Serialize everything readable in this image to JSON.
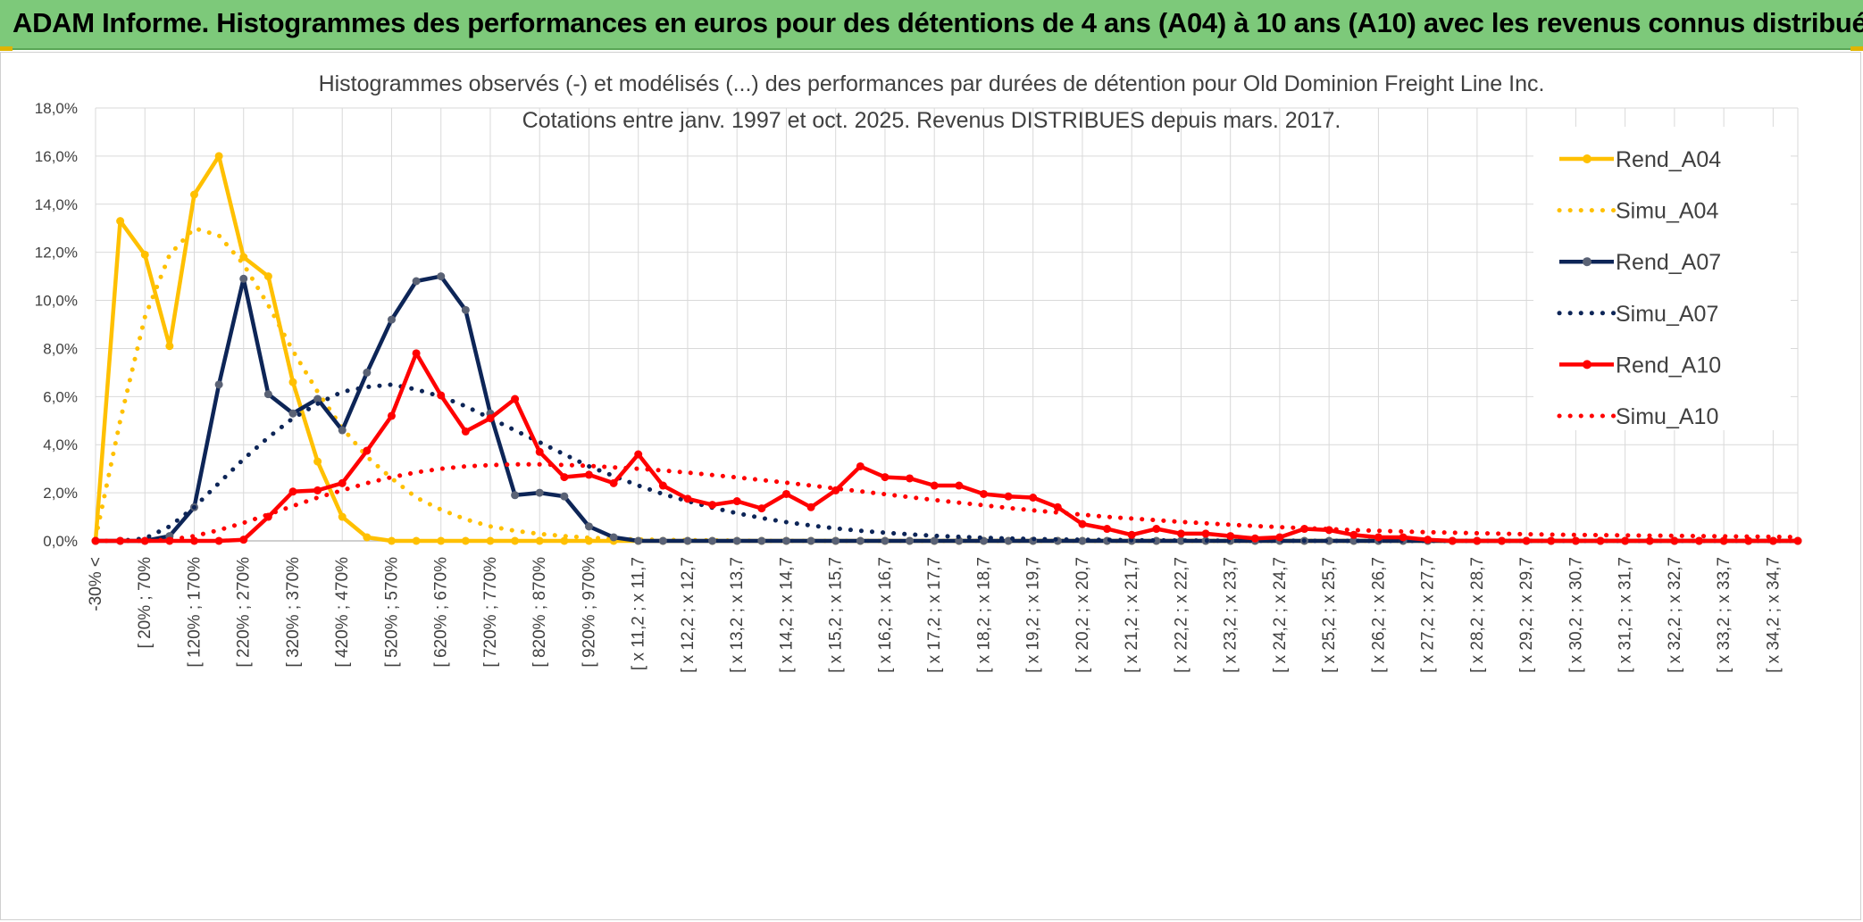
{
  "header": {
    "title": "ADAM Informe. Histogrammes des performances en euros pour des détentions de 4 ans (A04) à 10 ans (A10) avec les revenus connus distribués"
  },
  "colors": {
    "banner": "#7dc97a",
    "A04": "#ffc000",
    "A07": "#0d2557",
    "A07_marker": "#5a6275",
    "A10": "#ff0000",
    "grid": "#d9d9d9",
    "text": "#404040"
  },
  "chart_data": {
    "type": "line",
    "title": "Histogrammes observés (-) et modélisés (...) des performances par durées de détention pour Old Dominion Freight Line Inc.",
    "subtitle": "Cotations entre janv. 1997 et oct. 2025. Revenus DISTRIBUES depuis mars. 2017.",
    "xlabel": "",
    "ylabel": "",
    "ylim": [
      0,
      18
    ],
    "yticks": [
      "0,0%",
      "2,0%",
      "4,0%",
      "6,0%",
      "8,0%",
      "10,0%",
      "12,0%",
      "14,0%",
      "16,0%",
      "18,0%"
    ],
    "x_tick_labels": [
      "-30% <",
      "[ 20% ; 70%",
      "[ 120% ; 170%",
      "[ 220% ; 270%",
      "[ 320% ; 370%",
      "[ 420% ; 470%",
      "[ 520% ; 570%",
      "[ 620% ; 670%",
      "[ 720% ; 770%",
      "[ 820% ; 870%",
      "[ 920% ; 970%",
      "[ x 11,2 ; x 11,7",
      "[ x 12,2 ; x 12,7",
      "[ x 13,2 ; x 13,7",
      "[ x 14,2 ; x 14,7",
      "[ x 15,2 ; x 15,7",
      "[ x 16,2 ; x 16,7",
      "[ x 17,2 ; x 17,7",
      "[ x 18,2 ; x 18,7",
      "[ x 19,2 ; x 19,7",
      "[ x 20,2 ; x 20,7",
      "[ x 21,2 ; x 21,7",
      "[ x 22,2 ; x 22,7",
      "[ x 23,2 ; x 23,7",
      "[ x 24,2 ; x 24,7",
      "[ x 25,2 ; x 25,7",
      "[ x 26,2 ; x 26,7",
      "[ x 27,2 ; x 27,7",
      "[ x 28,2 ; x 28,7",
      "[ x 29,2 ; x 29,7",
      "[ x 30,2 ; x 30,7",
      "[ x 31,2 ; x 31,7",
      "[ x 32,2 ; x 32,7",
      "[ x 33,2 ; x 33,7",
      "[ x 34,2 ; x 34,7"
    ],
    "legend_position": "right",
    "grid": true,
    "series": [
      {
        "name": "Rend_A04",
        "style": "solid",
        "color": "#ffc000",
        "values": [
          0,
          13.3,
          11.9,
          8.1,
          14.4,
          16.0,
          11.8,
          11.0,
          6.6,
          3.3,
          1.0,
          0.15,
          0,
          0,
          0,
          0,
          0,
          0,
          0,
          0,
          0,
          0,
          0,
          0,
          0,
          0,
          0,
          0,
          0,
          0,
          0,
          0,
          0,
          0,
          0,
          0,
          0,
          0,
          0,
          0,
          0,
          0,
          0,
          0,
          0,
          0,
          0,
          0,
          0,
          0,
          0,
          0,
          0,
          0,
          0,
          0,
          0,
          0,
          0,
          0,
          0,
          0,
          0,
          0,
          0,
          0,
          0,
          0,
          0,
          0
        ]
      },
      {
        "name": "Simu_A04",
        "style": "dotted",
        "color": "#ffc000",
        "values": [
          0.1,
          5.0,
          9.3,
          11.9,
          13.0,
          12.7,
          11.5,
          9.8,
          7.9,
          6.2,
          4.7,
          3.5,
          2.6,
          1.8,
          1.3,
          0.9,
          0.6,
          0.42,
          0.29,
          0.2,
          0.13,
          0.09,
          0.06,
          0.04,
          0.03,
          0.02,
          0.01,
          0,
          0,
          0,
          0,
          0,
          0,
          0,
          0,
          0,
          0,
          0,
          0,
          0,
          0,
          0,
          0,
          0,
          0,
          0,
          0,
          0,
          0,
          0,
          0,
          0,
          0,
          0,
          0,
          0,
          0,
          0,
          0,
          0,
          0,
          0,
          0,
          0,
          0,
          0,
          0,
          0,
          0,
          0
        ]
      },
      {
        "name": "Rend_A07",
        "style": "solid",
        "color": "#0d2557",
        "values": [
          0,
          0,
          0,
          0.2,
          1.4,
          6.5,
          10.9,
          6.1,
          5.3,
          5.9,
          4.6,
          7.0,
          9.2,
          10.8,
          11.0,
          9.6,
          5.3,
          1.9,
          2.0,
          1.85,
          0.6,
          0.15,
          0,
          0,
          0,
          0,
          0,
          0,
          0,
          0,
          0,
          0,
          0,
          0,
          0,
          0,
          0,
          0,
          0,
          0,
          0,
          0,
          0,
          0,
          0,
          0,
          0,
          0,
          0,
          0,
          0,
          0,
          0,
          0,
          0,
          0,
          0,
          0,
          0,
          0,
          0,
          0,
          0,
          0,
          0,
          0,
          0,
          0,
          0,
          0
        ]
      },
      {
        "name": "Simu_A07",
        "style": "dotted",
        "color": "#0d2557",
        "values": [
          0,
          0,
          0.1,
          0.6,
          1.4,
          2.4,
          3.4,
          4.3,
          5.1,
          5.7,
          6.2,
          6.4,
          6.5,
          6.3,
          6.0,
          5.6,
          5.1,
          4.6,
          4.1,
          3.6,
          3.1,
          2.7,
          2.3,
          1.95,
          1.65,
          1.38,
          1.15,
          0.95,
          0.78,
          0.64,
          0.52,
          0.42,
          0.34,
          0.27,
          0.21,
          0.17,
          0.13,
          0.1,
          0.08,
          0.06,
          0.05,
          0.04,
          0.03,
          0.02,
          0.015,
          0.01,
          0.008,
          0.005,
          0.003,
          0.002,
          0,
          0,
          0,
          0,
          0,
          0,
          0,
          0,
          0,
          0,
          0,
          0,
          0,
          0,
          0,
          0,
          0,
          0,
          0,
          0
        ]
      },
      {
        "name": "Rend_A10",
        "style": "solid",
        "color": "#ff0000",
        "values": [
          0,
          0,
          0,
          0,
          0,
          0,
          0.05,
          1.0,
          2.05,
          2.1,
          2.4,
          3.75,
          5.2,
          7.8,
          6.05,
          4.55,
          5.1,
          5.9,
          3.7,
          2.65,
          2.75,
          2.4,
          3.6,
          2.3,
          1.75,
          1.5,
          1.65,
          1.35,
          1.95,
          1.4,
          2.1,
          3.1,
          2.65,
          2.6,
          2.3,
          2.3,
          1.95,
          1.85,
          1.8,
          1.4,
          0.7,
          0.5,
          0.25,
          0.5,
          0.3,
          0.3,
          0.2,
          0.1,
          0.15,
          0.5,
          0.45,
          0.25,
          0.15,
          0.15,
          0.05,
          0,
          0,
          0,
          0,
          0,
          0,
          0,
          0,
          0,
          0,
          0,
          0,
          0,
          0,
          0
        ]
      },
      {
        "name": "Simu_A10",
        "style": "dotted",
        "color": "#ff0000",
        "values": [
          0,
          0,
          0,
          0.05,
          0.2,
          0.45,
          0.75,
          1.1,
          1.45,
          1.8,
          2.1,
          2.4,
          2.65,
          2.85,
          3.0,
          3.1,
          3.15,
          3.18,
          3.18,
          3.16,
          3.12,
          3.06,
          3.0,
          2.93,
          2.84,
          2.74,
          2.64,
          2.53,
          2.42,
          2.3,
          2.18,
          2.06,
          1.94,
          1.82,
          1.7,
          1.59,
          1.48,
          1.37,
          1.27,
          1.18,
          1.09,
          1.0,
          0.93,
          0.86,
          0.79,
          0.73,
          0.67,
          0.62,
          0.57,
          0.53,
          0.49,
          0.45,
          0.42,
          0.39,
          0.36,
          0.34,
          0.32,
          0.3,
          0.28,
          0.26,
          0.25,
          0.24,
          0.23,
          0.22,
          0.21,
          0.2,
          0.19,
          0.18,
          0.17,
          0.16
        ]
      }
    ]
  }
}
